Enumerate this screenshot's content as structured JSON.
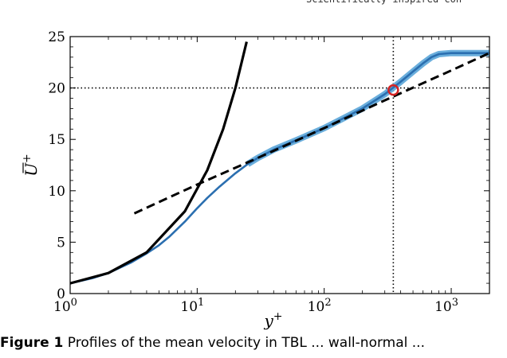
{
  "header": {
    "cut_text": "Scientifically inspired con"
  },
  "caption": {
    "lead": "Figure 1",
    "text": "Profiles of the mean velocity in TBL ... wall-normal ..."
  },
  "chart_data": {
    "type": "line",
    "xscale": "log",
    "xlim": [
      1,
      2000
    ],
    "ylim": [
      0,
      25
    ],
    "xlabel": "y+",
    "ylabel": "U+ (mean)",
    "x_ticks": [
      {
        "value": 1,
        "base": "10",
        "exp": "0"
      },
      {
        "value": 10,
        "base": "10",
        "exp": "1"
      },
      {
        "value": 100,
        "base": "10",
        "exp": "2"
      },
      {
        "value": 1000,
        "base": "10",
        "exp": "3"
      }
    ],
    "y_ticks": [
      0,
      5,
      10,
      15,
      20,
      25
    ],
    "grid": false,
    "series": [
      {
        "role": "viscous-sublayer",
        "style": "solid",
        "color": "#000000",
        "x": [
          1,
          2,
          4,
          8,
          12,
          16,
          20,
          24.5
        ],
        "y": [
          1,
          2,
          4,
          8,
          12,
          16,
          20,
          24.5
        ]
      },
      {
        "role": "log-law",
        "style": "dashed",
        "color": "#000000",
        "x": [
          3.2,
          10,
          30,
          100,
          300,
          1000,
          2000
        ],
        "y": [
          7.8,
          10.6,
          13.2,
          16.1,
          18.8,
          21.7,
          23.4
        ]
      },
      {
        "role": "profile",
        "style": "solid",
        "color": "#2b6fb0",
        "x": [
          1,
          1.5,
          2,
          3,
          4,
          5,
          6,
          8,
          10,
          12,
          15,
          20,
          25,
          30,
          40,
          60,
          100,
          200,
          300,
          400,
          500,
          600,
          700,
          800,
          1000,
          1300,
          1600,
          2000
        ],
        "y": [
          1,
          1.5,
          2,
          3,
          3.9,
          4.7,
          5.5,
          7.0,
          8.3,
          9.3,
          10.4,
          11.7,
          12.6,
          13.2,
          14.0,
          14.9,
          16.1,
          18.0,
          19.4,
          20.6,
          21.6,
          22.4,
          23.0,
          23.3,
          23.4,
          23.4,
          23.4,
          23.4
        ]
      },
      {
        "role": "profile-band",
        "style": "thick",
        "color": "#6aaedc",
        "x": [
          25,
          30,
          40,
          60,
          100,
          200,
          300,
          400,
          500,
          600,
          700,
          800,
          1000,
          1300,
          1600,
          2000
        ],
        "y": [
          12.6,
          13.2,
          14.0,
          14.9,
          16.1,
          18.0,
          19.4,
          20.6,
          21.6,
          22.4,
          23.0,
          23.3,
          23.4,
          23.4,
          23.4,
          23.4
        ]
      }
    ],
    "marker": {
      "x": 350,
      "y": 19.8,
      "color": "#d42424"
    },
    "reference_lines": {
      "x": 350,
      "y": 20
    }
  }
}
